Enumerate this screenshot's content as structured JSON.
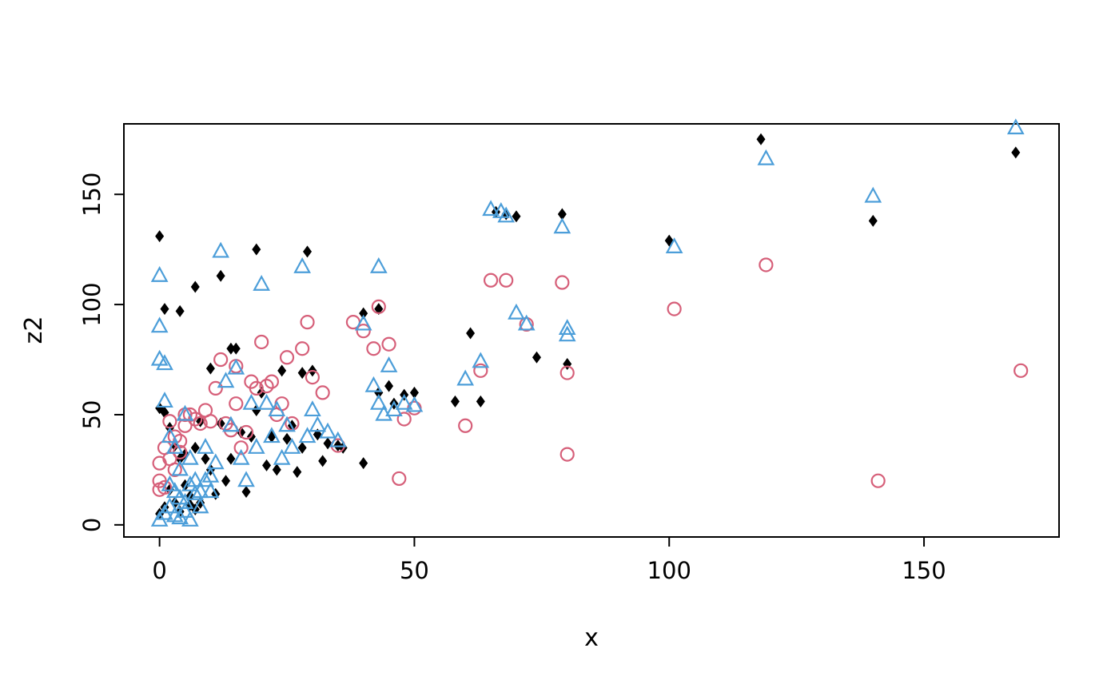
{
  "page": {
    "background": "#ffffff"
  },
  "chart_data": {
    "type": "scatter",
    "title": "",
    "xlabel": "x",
    "ylabel": "z2",
    "xlim": [
      -7,
      176.5
    ],
    "ylim": [
      -5.5,
      182
    ],
    "x_ticks": [
      0,
      50,
      100,
      150
    ],
    "y_ticks": [
      0,
      50,
      100,
      150
    ],
    "grid": false,
    "legend": "none",
    "axis_color": "#000000",
    "series": [
      {
        "name": "black-diamonds",
        "marker": "diamond",
        "fill": "#000000",
        "stroke": "#000000",
        "points": [
          [
            0,
            131
          ],
          [
            1,
            98
          ],
          [
            4,
            97
          ],
          [
            7,
            108
          ],
          [
            12,
            113
          ],
          [
            19,
            125
          ],
          [
            29,
            124
          ],
          [
            40,
            96
          ],
          [
            43,
            98
          ],
          [
            61,
            87
          ],
          [
            66,
            142
          ],
          [
            68,
            141
          ],
          [
            70,
            140
          ],
          [
            74,
            76
          ],
          [
            79,
            141
          ],
          [
            100,
            129
          ],
          [
            118,
            175
          ],
          [
            140,
            138
          ],
          [
            168,
            169
          ],
          [
            10,
            71
          ],
          [
            14,
            80
          ],
          [
            20,
            60
          ],
          [
            24,
            70
          ],
          [
            28,
            69
          ],
          [
            30,
            70
          ],
          [
            33,
            37
          ],
          [
            35,
            36
          ],
          [
            36,
            35
          ],
          [
            40,
            28
          ],
          [
            43,
            60
          ],
          [
            45,
            63
          ],
          [
            46,
            55
          ],
          [
            48,
            59
          ],
          [
            50,
            60
          ],
          [
            58,
            56
          ],
          [
            63,
            56
          ],
          [
            80,
            73
          ],
          [
            0,
            53
          ],
          [
            0,
            5
          ],
          [
            1,
            51
          ],
          [
            1,
            8
          ],
          [
            2,
            44
          ],
          [
            2,
            16
          ],
          [
            3,
            36
          ],
          [
            3,
            10
          ],
          [
            4,
            30
          ],
          [
            4,
            6
          ],
          [
            5,
            18
          ],
          [
            5,
            32
          ],
          [
            6,
            9
          ],
          [
            6,
            13
          ],
          [
            7,
            35
          ],
          [
            7,
            7
          ],
          [
            8,
            47
          ],
          [
            8,
            10
          ],
          [
            9,
            30
          ],
          [
            10,
            25
          ],
          [
            11,
            14
          ],
          [
            12,
            46
          ],
          [
            13,
            20
          ],
          [
            14,
            30
          ],
          [
            15,
            80
          ],
          [
            16,
            42
          ],
          [
            17,
            15
          ],
          [
            18,
            40
          ],
          [
            19,
            52
          ],
          [
            21,
            27
          ],
          [
            22,
            40
          ],
          [
            23,
            25
          ],
          [
            25,
            39
          ],
          [
            26,
            45
          ],
          [
            27,
            24
          ],
          [
            28,
            35
          ],
          [
            31,
            41
          ],
          [
            32,
            29
          ]
        ]
      },
      {
        "name": "pink-circles",
        "marker": "circle",
        "fill": "none",
        "stroke": "#d65f79",
        "points": [
          [
            0,
            28
          ],
          [
            0,
            20
          ],
          [
            0,
            16
          ],
          [
            1,
            35
          ],
          [
            1,
            17
          ],
          [
            2,
            30
          ],
          [
            2,
            47
          ],
          [
            3,
            25
          ],
          [
            3,
            40
          ],
          [
            4,
            33
          ],
          [
            4,
            38
          ],
          [
            5,
            45
          ],
          [
            5,
            50
          ],
          [
            6,
            50
          ],
          [
            7,
            48
          ],
          [
            8,
            46
          ],
          [
            9,
            52
          ],
          [
            10,
            47
          ],
          [
            11,
            62
          ],
          [
            12,
            75
          ],
          [
            13,
            46
          ],
          [
            14,
            43
          ],
          [
            15,
            55
          ],
          [
            15,
            72
          ],
          [
            16,
            35
          ],
          [
            17,
            42
          ],
          [
            18,
            65
          ],
          [
            19,
            62
          ],
          [
            20,
            83
          ],
          [
            21,
            63
          ],
          [
            22,
            65
          ],
          [
            23,
            50
          ],
          [
            24,
            55
          ],
          [
            25,
            76
          ],
          [
            26,
            46
          ],
          [
            28,
            80
          ],
          [
            29,
            92
          ],
          [
            30,
            67
          ],
          [
            32,
            60
          ],
          [
            35,
            36
          ],
          [
            38,
            92
          ],
          [
            40,
            88
          ],
          [
            42,
            80
          ],
          [
            43,
            99
          ],
          [
            45,
            82
          ],
          [
            47,
            21
          ],
          [
            48,
            48
          ],
          [
            50,
            53
          ],
          [
            60,
            45
          ],
          [
            63,
            70
          ],
          [
            65,
            111
          ],
          [
            68,
            111
          ],
          [
            72,
            91
          ],
          [
            79,
            110
          ],
          [
            80,
            69
          ],
          [
            80,
            32
          ],
          [
            101,
            98
          ],
          [
            119,
            118
          ],
          [
            141,
            20
          ],
          [
            169,
            70
          ]
        ]
      },
      {
        "name": "blue-triangles",
        "marker": "triangle-up",
        "fill": "none",
        "stroke": "#4c9ed9",
        "points": [
          [
            0,
            113
          ],
          [
            0,
            90
          ],
          [
            0,
            75
          ],
          [
            1,
            73
          ],
          [
            1,
            56
          ],
          [
            2,
            40
          ],
          [
            2,
            18
          ],
          [
            3,
            35
          ],
          [
            3,
            15
          ],
          [
            4,
            25
          ],
          [
            4,
            12
          ],
          [
            5,
            50
          ],
          [
            5,
            10
          ],
          [
            6,
            30
          ],
          [
            6,
            18
          ],
          [
            7,
            20
          ],
          [
            7,
            14
          ],
          [
            8,
            15
          ],
          [
            8,
            8
          ],
          [
            9,
            35
          ],
          [
            9,
            20
          ],
          [
            10,
            22
          ],
          [
            10,
            15
          ],
          [
            11,
            28
          ],
          [
            12,
            124
          ],
          [
            13,
            65
          ],
          [
            14,
            45
          ],
          [
            15,
            71
          ],
          [
            16,
            30
          ],
          [
            17,
            20
          ],
          [
            18,
            55
          ],
          [
            19,
            35
          ],
          [
            20,
            109
          ],
          [
            21,
            55
          ],
          [
            22,
            40
          ],
          [
            23,
            52
          ],
          [
            24,
            30
          ],
          [
            25,
            45
          ],
          [
            26,
            35
          ],
          [
            28,
            117
          ],
          [
            29,
            40
          ],
          [
            30,
            52
          ],
          [
            31,
            45
          ],
          [
            33,
            42
          ],
          [
            35,
            38
          ],
          [
            40,
            91
          ],
          [
            42,
            63
          ],
          [
            43,
            117
          ],
          [
            43,
            55
          ],
          [
            44,
            50
          ],
          [
            45,
            72
          ],
          [
            46,
            52
          ],
          [
            48,
            55
          ],
          [
            50,
            54
          ],
          [
            60,
            66
          ],
          [
            63,
            74
          ],
          [
            65,
            143
          ],
          [
            67,
            142
          ],
          [
            68,
            140
          ],
          [
            70,
            96
          ],
          [
            72,
            91
          ],
          [
            79,
            135
          ],
          [
            80,
            89
          ],
          [
            80,
            86
          ],
          [
            101,
            126
          ],
          [
            119,
            166
          ],
          [
            140,
            149
          ],
          [
            168,
            180
          ],
          [
            0,
            2
          ],
          [
            1,
            5
          ],
          [
            2,
            8
          ],
          [
            3,
            4
          ],
          [
            4,
            3
          ],
          [
            5,
            6
          ],
          [
            6,
            2
          ]
        ]
      }
    ]
  }
}
